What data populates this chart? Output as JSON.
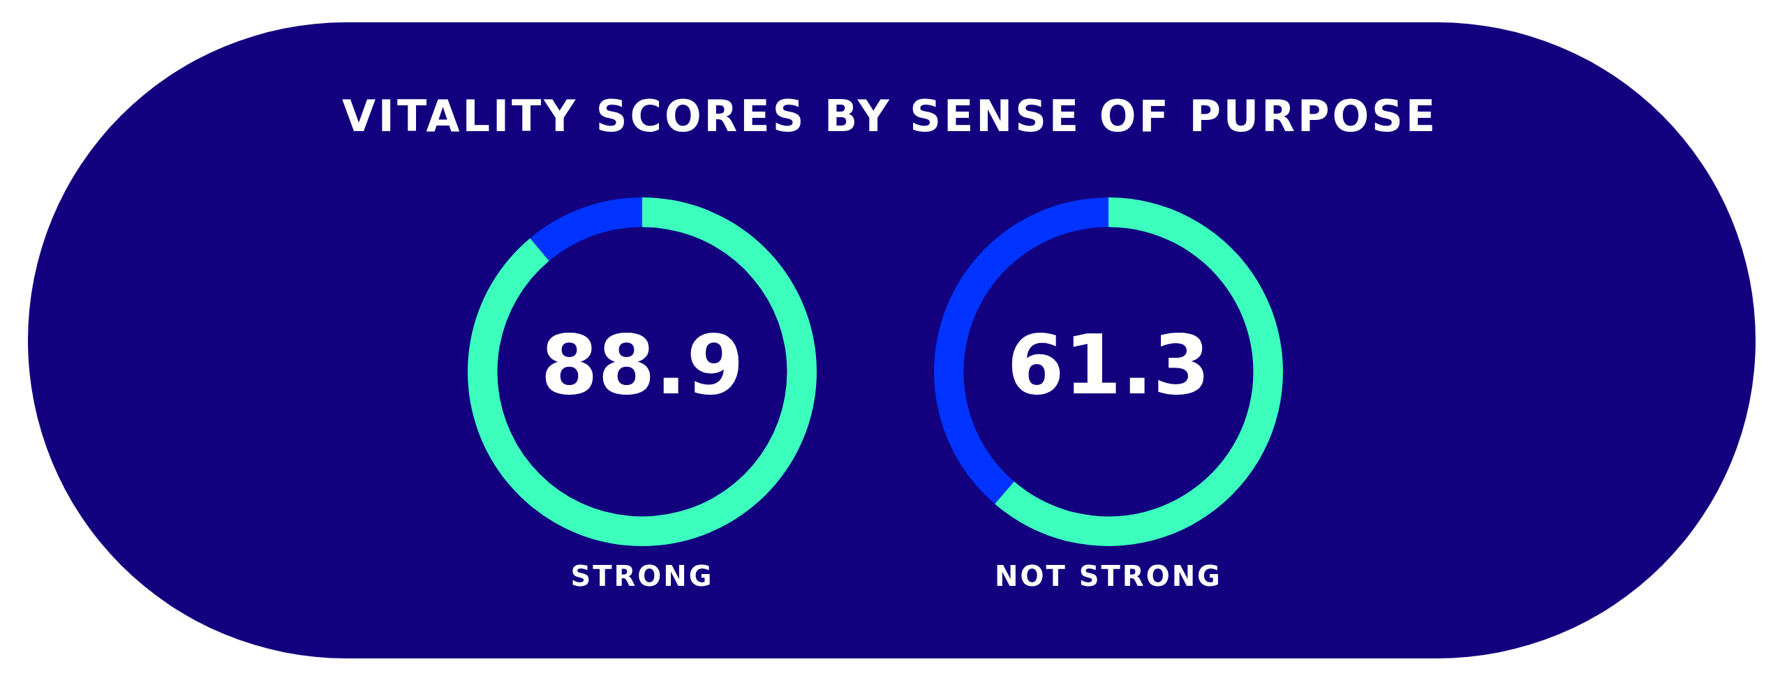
{
  "chart_data": [
    {
      "type": "donut",
      "title": "VITALITY SCORES BY SENSE OF PURPOSE",
      "xlabel": "STRONG",
      "categories": [
        null,
        null
      ],
      "values": [
        88.9,
        11.1
      ],
      "colors": [
        "#3cffbe",
        "#0033ff"
      ],
      "value_labels": [
        "88.9",
        null
      ]
    },
    {
      "type": "donut",
      "xlabel": "NOT STRONG",
      "categories": [
        null,
        null
      ],
      "values": [
        61.3,
        38.7
      ],
      "colors": [
        "#3cffbe",
        "#0033ff"
      ],
      "value_labels": [
        "61.3",
        null
      ]
    }
  ]
}
